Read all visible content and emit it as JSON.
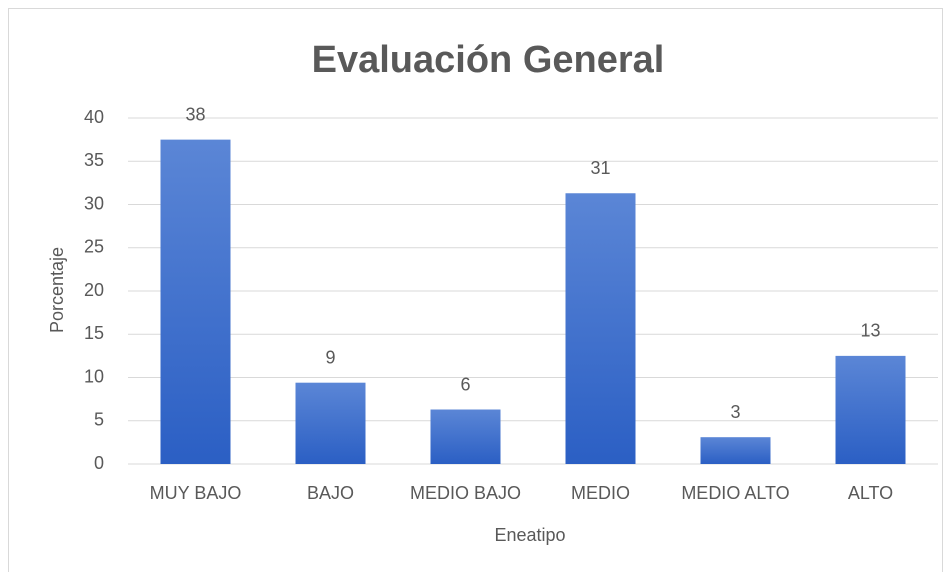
{
  "chart_data": {
    "type": "bar",
    "title": "Evaluación General",
    "x_label": "Eneatipo",
    "y_label": "Porcentaje",
    "categories": [
      "MUY BAJO",
      "BAJO",
      "MEDIO BAJO",
      "MEDIO",
      "MEDIO ALTO",
      "ALTO"
    ],
    "values": [
      37.5,
      9.4,
      6.3,
      31.3,
      3.1,
      12.5
    ],
    "value_labels": [
      "38",
      "9",
      "6",
      "31",
      "3",
      "13"
    ],
    "color": "#4472c4",
    "ylim": [
      0,
      40
    ],
    "yticks": [
      0,
      5,
      10,
      15,
      20,
      25,
      30,
      35,
      40
    ],
    "grid": true
  }
}
